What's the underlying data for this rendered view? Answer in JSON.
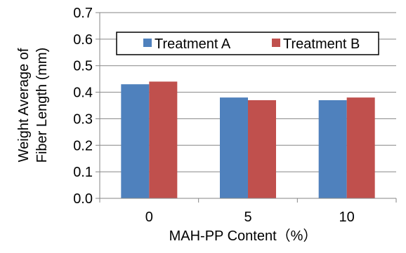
{
  "chart_data": {
    "type": "bar",
    "categories": [
      "0",
      "5",
      "10"
    ],
    "series": [
      {
        "name": "Treatment A",
        "values": [
          0.43,
          0.38,
          0.37
        ]
      },
      {
        "name": "Treatment B",
        "values": [
          0.44,
          0.37,
          0.38
        ]
      }
    ],
    "xlabel": "MAH-PP Content（%）",
    "ylabel_lines": [
      "Weight Average of",
      "Fiber Length (mm)"
    ],
    "ylim": [
      0,
      0.7
    ],
    "yticks": [
      0.0,
      0.1,
      0.2,
      0.3,
      0.4,
      0.5,
      0.6,
      0.7
    ],
    "ytick_labels": [
      "0.0",
      "0.1",
      "0.2",
      "0.3",
      "0.4",
      "0.5",
      "0.6",
      "0.7"
    ],
    "grid": true,
    "legend_position": "top-center"
  },
  "colors": {
    "series": [
      "#4F81BD",
      "#C0504D"
    ],
    "grid": "#868686",
    "axis": "#868686"
  }
}
